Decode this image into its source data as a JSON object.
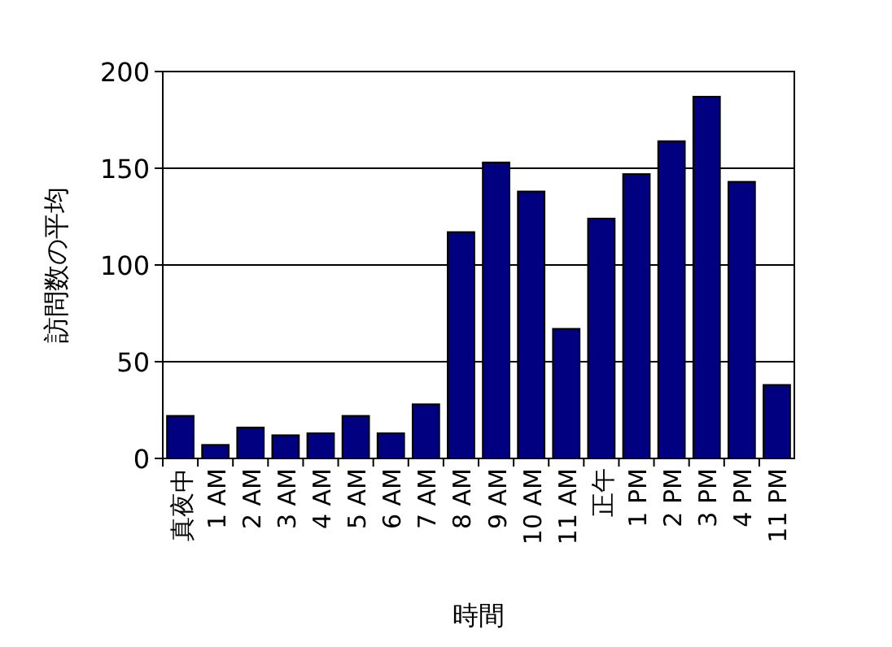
{
  "chart_data": {
    "type": "bar",
    "xlabel": "時間",
    "ylabel": "訪問数の平均",
    "categories": [
      "真夜中",
      "1 AM",
      "2 AM",
      "3 AM",
      "4 AM",
      "5 AM",
      "6 AM",
      "7 AM",
      "8 AM",
      "9 AM",
      "10 AM",
      "11 AM",
      "正午",
      "1 PM",
      "2 PM",
      "3 PM",
      "4 PM",
      "11 PM"
    ],
    "series": [
      {
        "color": "#000080",
        "values": [
          22,
          7,
          16,
          12,
          13,
          22,
          13,
          28,
          117,
          153,
          138,
          67,
          124,
          147,
          164,
          187,
          143,
          38
        ]
      }
    ],
    "ylim": [
      0,
      200
    ],
    "yticks": [
      0,
      50,
      100,
      150,
      200
    ],
    "grid": "y"
  }
}
